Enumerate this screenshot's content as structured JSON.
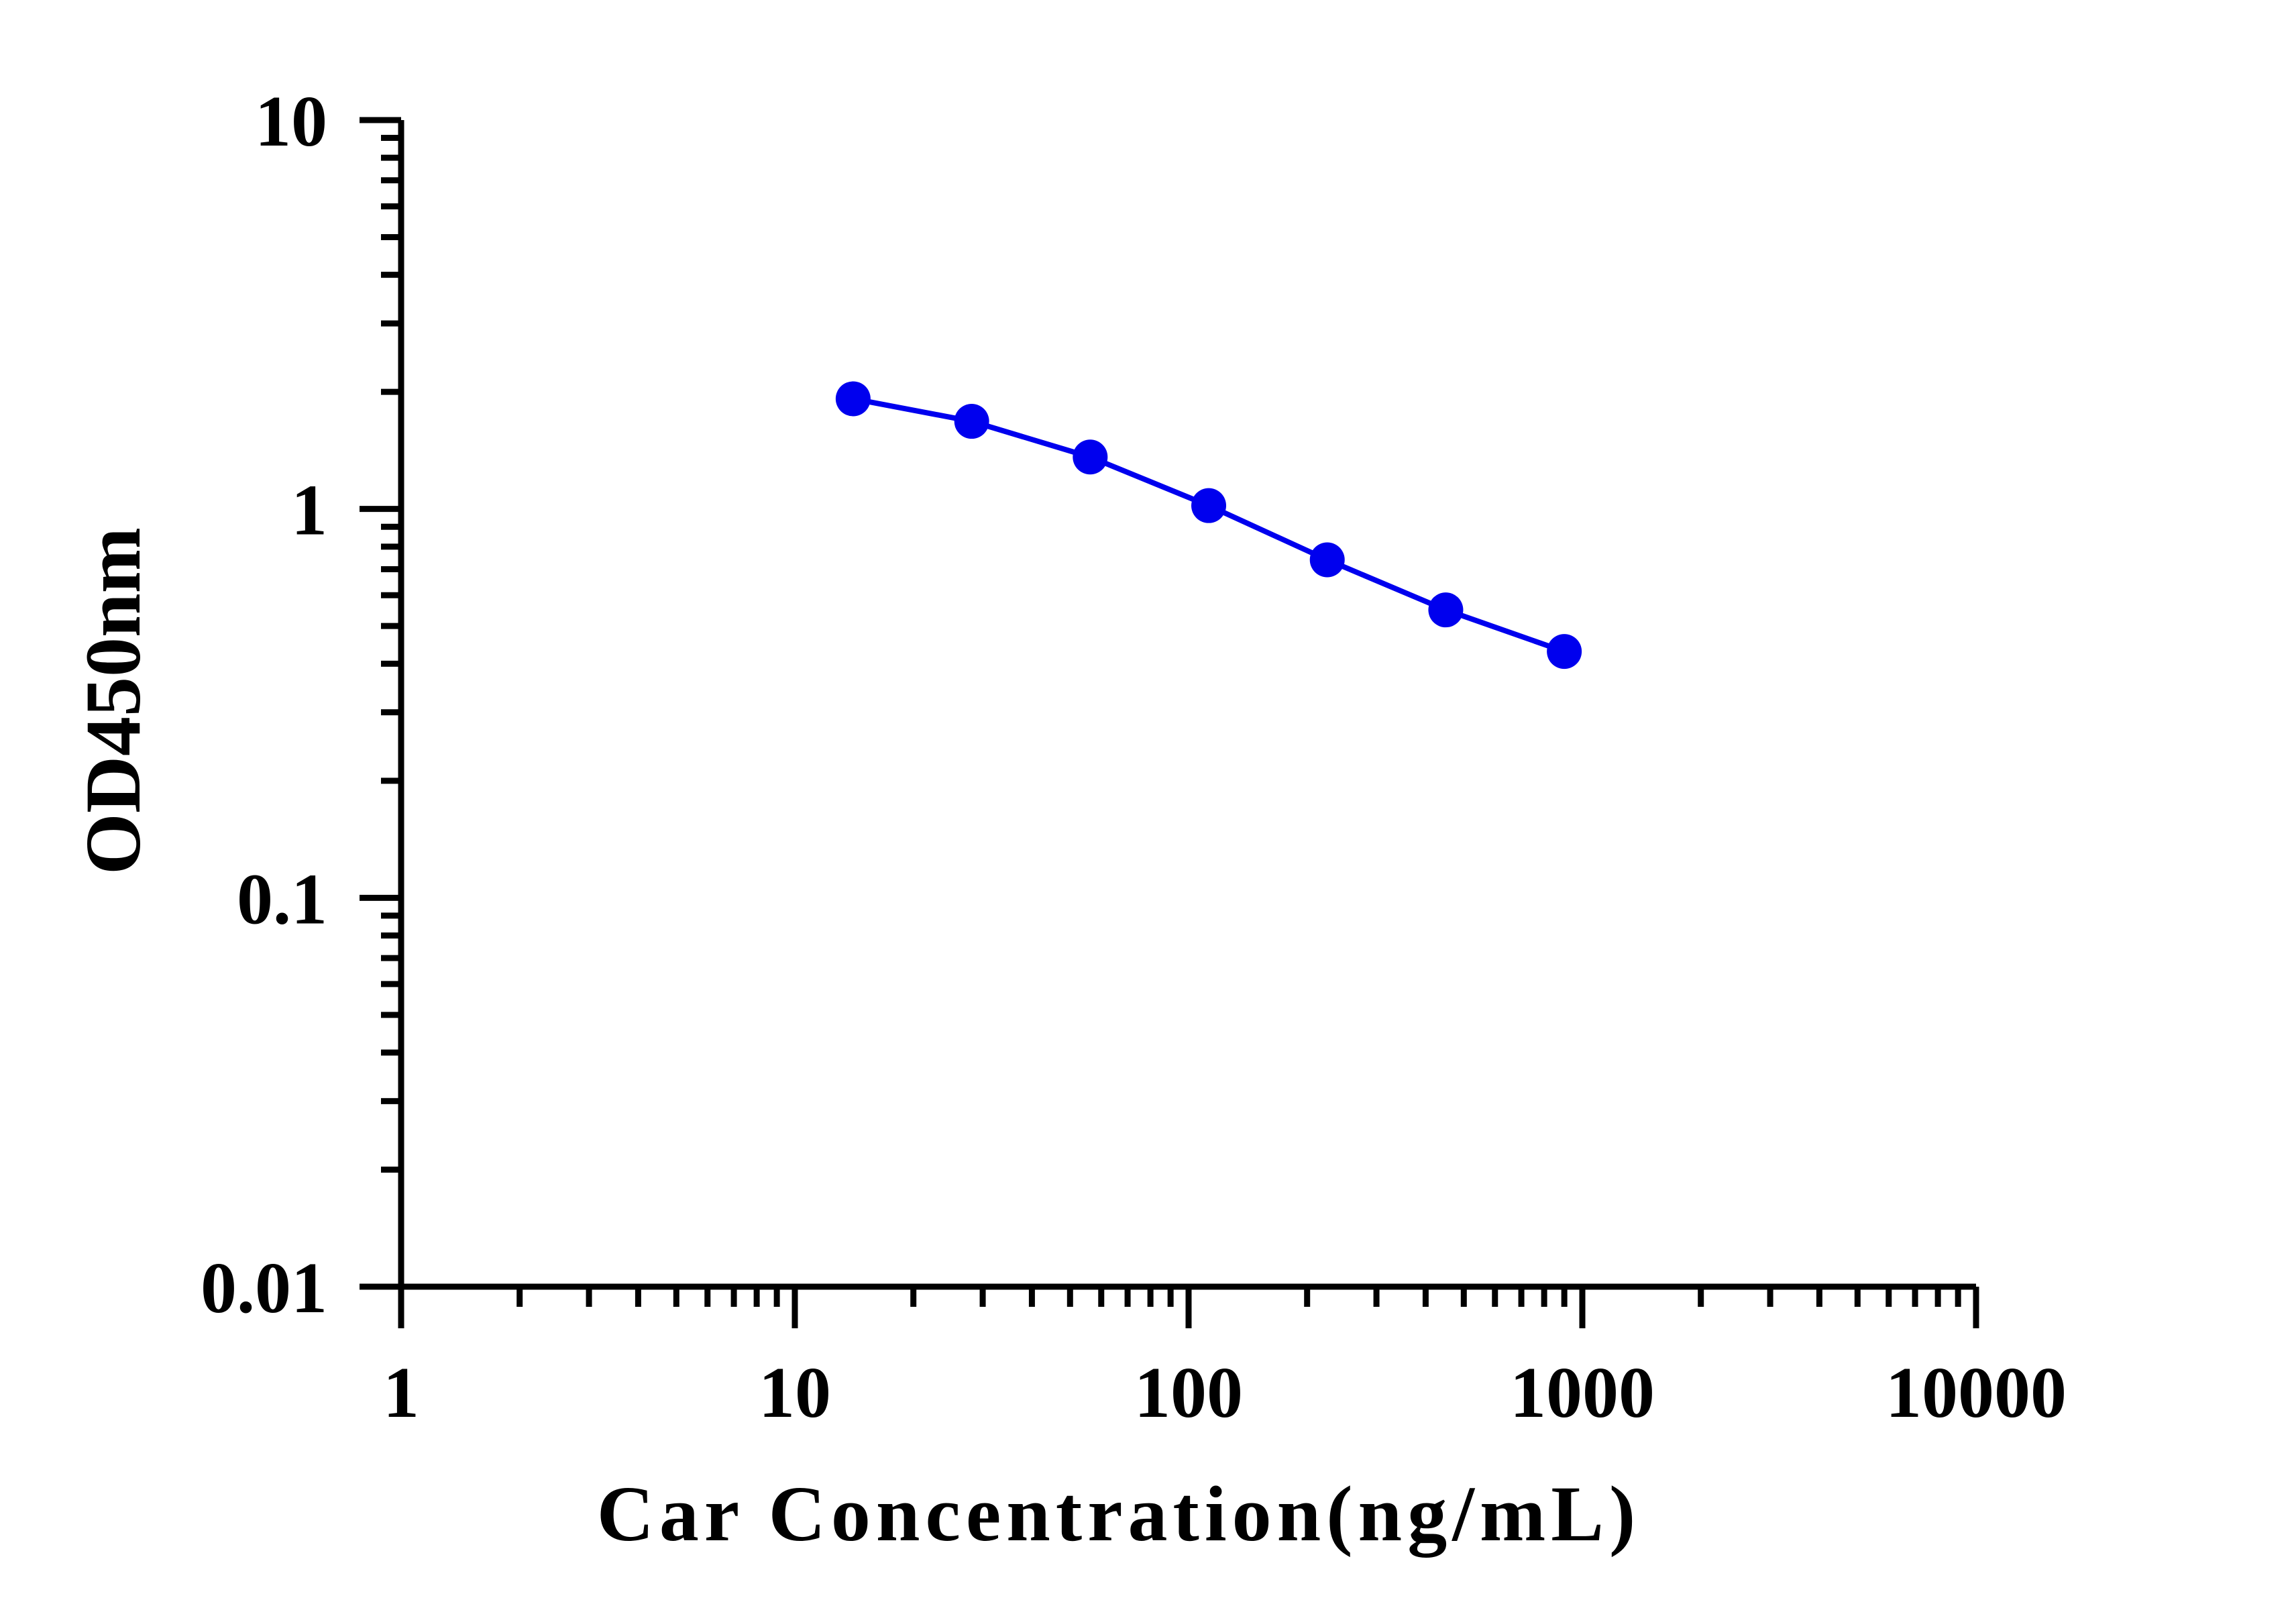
{
  "chart_data": {
    "type": "line",
    "title": "",
    "xlabel": "Car Concentration(ng/mL)",
    "ylabel": "OD450nm",
    "x_scale": "log",
    "y_scale": "log",
    "xlim": [
      1,
      10000
    ],
    "ylim": [
      0.01,
      10
    ],
    "x_tick_labels": [
      "1",
      "10",
      "100",
      "1000",
      "10000"
    ],
    "y_tick_labels": [
      "0.01",
      "0.1",
      "1",
      "10"
    ],
    "grid": false,
    "legend": "none",
    "series": [
      {
        "color": "#0000ee",
        "marker": "circle",
        "x": [
          14.06,
          28.13,
          56.25,
          112.5,
          225,
          450,
          900
        ],
        "y": [
          1.92,
          1.68,
          1.36,
          1.02,
          0.74,
          0.55,
          0.43
        ]
      }
    ]
  }
}
